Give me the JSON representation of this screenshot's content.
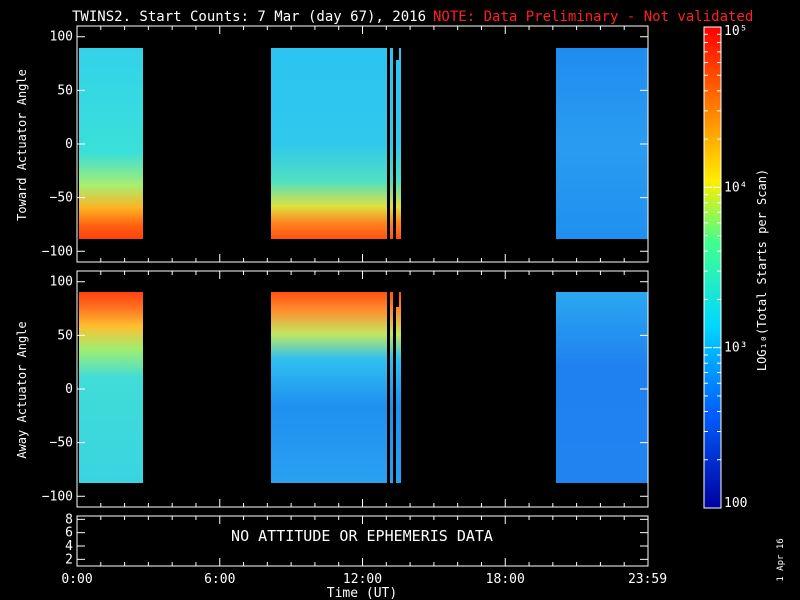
{
  "title": "TWINS2. Start Counts:  7 Mar (day  67), 2016",
  "note": "NOTE: Data Preliminary - Not validated",
  "panel1": {
    "ylabel": "Toward Actuator Angle"
  },
  "panel2": {
    "ylabel": "Away Actuator Angle"
  },
  "panel3": {
    "message": "NO ATTITUDE OR EPHEMERIS DATA"
  },
  "xlabel": "Time (UT)",
  "colorbar_label": "LOG₁₀(Total Starts per Scan)",
  "colorbar_ticks": [
    "10⁵",
    "10⁴",
    "10³",
    "100"
  ],
  "date_stamp": "1 Apr 16",
  "chart_data": [
    {
      "type": "heatmap",
      "panel": "toward",
      "ylabel": "Toward Actuator Angle",
      "y_ticks": [
        "100",
        "50",
        "0",
        "−50",
        "−100"
      ],
      "y_values": [
        100,
        50,
        0,
        -50,
        -100
      ],
      "ylim": [
        -110,
        110
      ],
      "x_ticks": [
        "0:00",
        "6:00",
        "12:00",
        "18:00",
        "23:59"
      ],
      "x_values": [
        0,
        6,
        12,
        18,
        23.98
      ],
      "xlim": [
        0,
        24
      ],
      "data_blocks_ut": [
        [
          0,
          2.7
        ],
        [
          8.1,
          13.7
        ],
        [
          20.2,
          24
        ]
      ],
      "angle_range": [
        -88,
        90
      ],
      "color_scale": {
        "type": "log",
        "min": 100,
        "max": 100000
      }
    },
    {
      "type": "heatmap",
      "panel": "away",
      "ylabel": "Away Actuator Angle",
      "y_ticks": [
        "100",
        "50",
        "0",
        "−50",
        "−100"
      ],
      "y_values": [
        100,
        50,
        0,
        -50,
        -100
      ],
      "ylim": [
        -110,
        110
      ],
      "x_ticks": [
        "0:00",
        "6:00",
        "12:00",
        "18:00",
        "23:59"
      ],
      "x_values": [
        0,
        6,
        12,
        18,
        23.98
      ],
      "xlim": [
        0,
        24
      ],
      "data_blocks_ut": [
        [
          0,
          2.7
        ],
        [
          8.1,
          13.7
        ],
        [
          20.2,
          24
        ]
      ],
      "angle_range": [
        -88,
        90
      ],
      "color_scale": {
        "type": "log",
        "min": 100,
        "max": 100000
      }
    },
    {
      "type": "line",
      "panel": "ephemeris",
      "y_ticks": [
        "8",
        "6",
        "4",
        "2"
      ],
      "y_values": [
        8,
        6,
        4,
        2
      ],
      "ylim": [
        1,
        8.5
      ],
      "x_ticks": [
        "0:00",
        "6:00",
        "12:00",
        "18:00",
        "23:59"
      ],
      "xlabel": "Time (UT)"
    }
  ],
  "colors": {
    "background": "#000000",
    "note": "#ff2020",
    "colorbar_stops": [
      "#ff0000",
      "#ff7f00",
      "#ffff00",
      "#00ff80",
      "#00e0ff",
      "#0060ff",
      "#0000a0"
    ]
  }
}
